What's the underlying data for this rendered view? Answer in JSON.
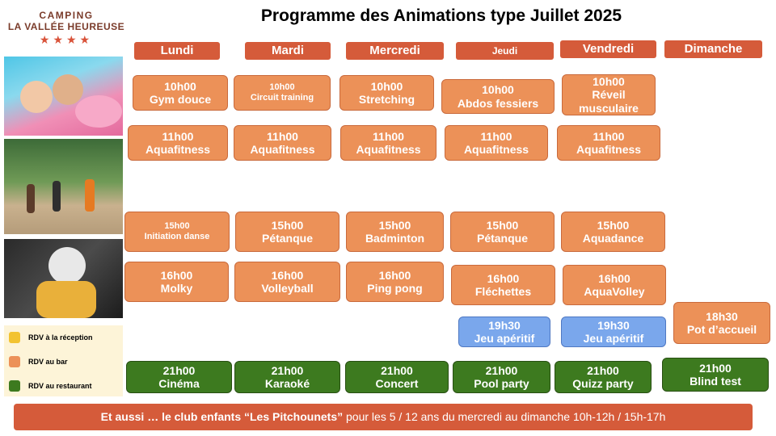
{
  "logo": {
    "line1": "CAMPING",
    "line2": "LA VALLÉE HEUREUSE",
    "stars": "★★★★"
  },
  "title": "Programme des Animations type Juillet 2025",
  "days": [
    "Lundi",
    "Mardi",
    "Mercredi",
    "Jeudi",
    "Vendredi",
    "Dimanche"
  ],
  "legend": [
    {
      "label": "RDV à la réception",
      "color": "#f2c331"
    },
    {
      "label": "RDV au bar",
      "color": "#ec9158"
    },
    {
      "label": "RDV au restaurant",
      "color": "#3d7a1f"
    }
  ],
  "activities": [
    {
      "day": "Lundi",
      "time": "10h00",
      "name": "Gym douce",
      "venue": "bar"
    },
    {
      "day": "Mardi",
      "time": "10h00",
      "name": "Circuit training",
      "venue": "bar"
    },
    {
      "day": "Mercredi",
      "time": "10h00",
      "name": "Stretching",
      "venue": "bar"
    },
    {
      "day": "Jeudi",
      "time": "10h00",
      "name": "Abdos fessiers",
      "venue": "bar"
    },
    {
      "day": "Vendredi",
      "time": "10h00",
      "name": "Réveil musculaire",
      "venue": "bar"
    },
    {
      "day": "Lundi",
      "time": "11h00",
      "name": "Aquafitness",
      "venue": "bar"
    },
    {
      "day": "Mardi",
      "time": "11h00",
      "name": "Aquafitness",
      "venue": "bar"
    },
    {
      "day": "Mercredi",
      "time": "11h00",
      "name": "Aquafitness",
      "venue": "bar"
    },
    {
      "day": "Jeudi",
      "time": "11h00",
      "name": "Aquafitness",
      "venue": "bar"
    },
    {
      "day": "Vendredi",
      "time": "11h00",
      "name": "Aquafitness",
      "venue": "bar"
    },
    {
      "day": "Lundi",
      "time": "15h00",
      "name": "Initiation danse",
      "venue": "bar"
    },
    {
      "day": "Mardi",
      "time": "15h00",
      "name": "Pétanque",
      "venue": "bar"
    },
    {
      "day": "Mercredi",
      "time": "15h00",
      "name": "Badminton",
      "venue": "bar"
    },
    {
      "day": "Jeudi",
      "time": "15h00",
      "name": "Pétanque",
      "venue": "bar"
    },
    {
      "day": "Vendredi",
      "time": "15h00",
      "name": "Aquadance",
      "venue": "bar"
    },
    {
      "day": "Lundi",
      "time": "16h00",
      "name": "Molky",
      "venue": "bar"
    },
    {
      "day": "Mardi",
      "time": "16h00",
      "name": "Volleyball",
      "venue": "bar"
    },
    {
      "day": "Mercredi",
      "time": "16h00",
      "name": "Ping pong",
      "venue": "bar"
    },
    {
      "day": "Jeudi",
      "time": "16h00",
      "name": "Fléchettes",
      "venue": "bar"
    },
    {
      "day": "Vendredi",
      "time": "16h00",
      "name": "AquaVolley",
      "venue": "bar"
    },
    {
      "day": "Jeudi",
      "time": "19h30",
      "name": "Jeu apéritif",
      "venue": "other"
    },
    {
      "day": "Vendredi",
      "time": "19h30",
      "name": "Jeu apéritif",
      "venue": "other"
    },
    {
      "day": "Dimanche",
      "time": "18h30",
      "name": "Pot d’accueil",
      "venue": "bar"
    },
    {
      "day": "Lundi",
      "time": "21h00",
      "name": "Cinéma",
      "venue": "restaurant"
    },
    {
      "day": "Mardi",
      "time": "21h00",
      "name": "Karaoké",
      "venue": "restaurant"
    },
    {
      "day": "Mercredi",
      "time": "21h00",
      "name": "Concert",
      "venue": "restaurant"
    },
    {
      "day": "Jeudi",
      "time": "21h00",
      "name": "Pool party",
      "venue": "restaurant"
    },
    {
      "day": "Vendredi",
      "time": "21h00",
      "name": "Quizz party",
      "venue": "restaurant"
    },
    {
      "day": "Dimanche",
      "time": "21h00",
      "name": "Blind test",
      "venue": "restaurant"
    }
  ],
  "banner": {
    "bold": "Et aussi … le club enfants “Les Pitchounets”",
    "rest": " pour les 5 / 12 ans du mercredi au dimanche  10h-12h / 15h-17h"
  }
}
